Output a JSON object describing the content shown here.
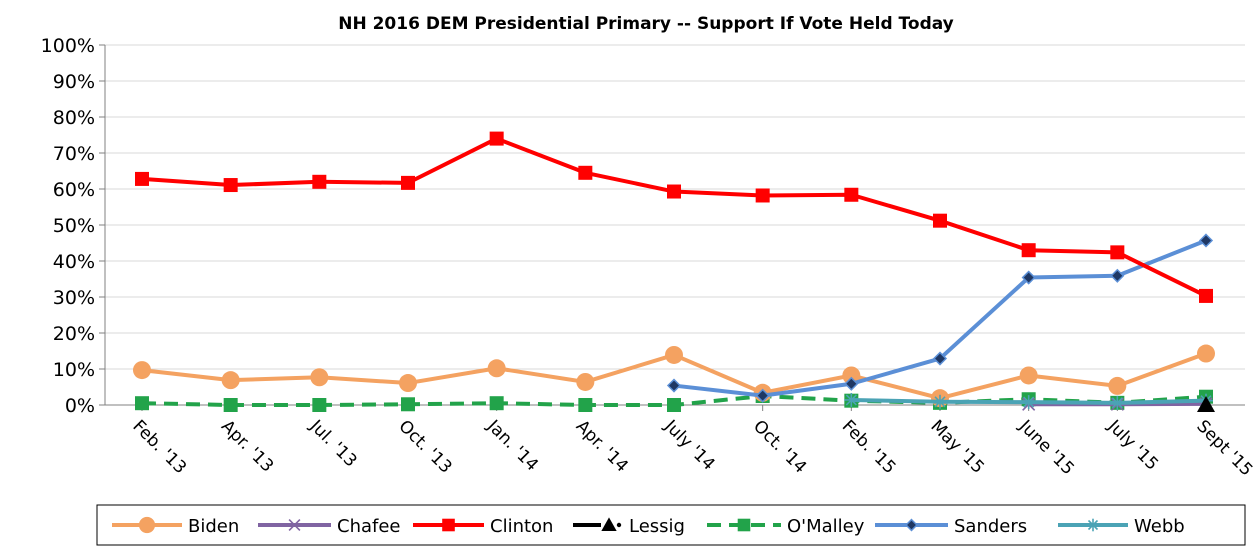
{
  "chart_data": {
    "type": "line",
    "title": "NH 2016 DEM Presidential Primary -- Support If Vote Held Today",
    "xlabel": "",
    "ylabel": "",
    "ylim": [
      0,
      100
    ],
    "yticks": [
      "0%",
      "10%",
      "20%",
      "30%",
      "40%",
      "50%",
      "60%",
      "70%",
      "80%",
      "90%",
      "100%"
    ],
    "categories": [
      "Feb. '13",
      "Apr. '13",
      "Jul. '13",
      "Oct. '13",
      "Jan. '14",
      "Apr. '14",
      "July '14",
      "Oct. '14",
      "Feb. '15",
      "May '15",
      "June '15",
      "July '15",
      "Sept '15"
    ],
    "grid": "horizontal",
    "legend_position": "bottom",
    "series": [
      {
        "name": "Biden",
        "color": "#F4A261",
        "marker": "circle",
        "dash": "",
        "values": [
          9.7,
          6.9,
          7.7,
          6.1,
          10.2,
          6.4,
          13.9,
          3.4,
          8.2,
          1.9,
          8.2,
          5.3,
          14.3
        ]
      },
      {
        "name": "Chafee",
        "color": "#8064A2",
        "marker": "x",
        "dash": "",
        "values": [
          null,
          null,
          null,
          null,
          null,
          null,
          null,
          null,
          null,
          null,
          0.2,
          0.2,
          0.3
        ]
      },
      {
        "name": "Clinton",
        "color": "#FF0000",
        "marker": "square",
        "dash": "",
        "values": [
          62.8,
          61.1,
          62.0,
          61.7,
          74.0,
          64.5,
          59.3,
          58.2,
          58.4,
          51.2,
          43.0,
          42.4,
          30.3
        ]
      },
      {
        "name": "Lessig",
        "color": "#000000",
        "marker": "triangle",
        "dash": "2,6",
        "values": [
          null,
          null,
          null,
          null,
          null,
          null,
          null,
          null,
          null,
          null,
          null,
          null,
          0.0
        ]
      },
      {
        "name": "O'Malley",
        "color": "#22A34A",
        "marker": "square",
        "dash": "14,8",
        "values": [
          0.5,
          0.0,
          0.0,
          0.2,
          0.5,
          0.0,
          0.0,
          2.5,
          1.2,
          0.6,
          1.6,
          0.6,
          2.3
        ]
      },
      {
        "name": "Sanders",
        "color": "#5B8FD6",
        "marker": "diamond",
        "dash": "",
        "values": [
          null,
          null,
          null,
          null,
          null,
          null,
          5.4,
          2.6,
          5.9,
          12.9,
          35.4,
          35.9,
          45.7
        ]
      },
      {
        "name": "Webb",
        "color": "#4BA3B5",
        "marker": "asterisk",
        "dash": "",
        "values": [
          null,
          null,
          null,
          null,
          null,
          null,
          null,
          null,
          1.4,
          0.9,
          0.8,
          0.6,
          1.2
        ]
      }
    ]
  }
}
